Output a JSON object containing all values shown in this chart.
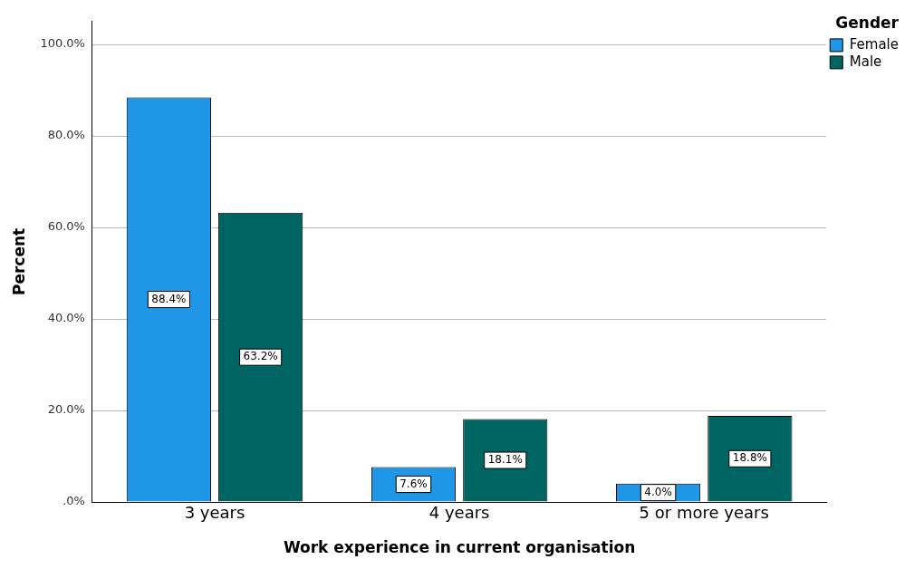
{
  "chart_data": {
    "type": "bar",
    "xlabel": "Work experience in current organisation",
    "ylabel": "Percent",
    "legend_title": "Gender",
    "categories": [
      "3 years",
      "4 years",
      "5 or more years"
    ],
    "series": [
      {
        "name": "Female",
        "color": "#1f96e6",
        "values": [
          88.4,
          7.6,
          4.0
        ],
        "value_labels": [
          "88.4%",
          "7.6%",
          "4.0%"
        ]
      },
      {
        "name": "Male",
        "color": "#006462",
        "values": [
          63.2,
          18.1,
          18.8
        ],
        "value_labels": [
          "63.2%",
          "18.1%",
          "18.8%"
        ]
      }
    ],
    "ylim": [
      0,
      105
    ],
    "yticks": [
      {
        "value": 0,
        "label": ".0%"
      },
      {
        "value": 20,
        "label": "20.0%"
      },
      {
        "value": 40,
        "label": "40.0%"
      },
      {
        "value": 60,
        "label": "60.0%"
      },
      {
        "value": 80,
        "label": "80.0%"
      },
      {
        "value": 100,
        "label": "100.0%"
      }
    ],
    "grid": "y",
    "legend": "top right"
  }
}
